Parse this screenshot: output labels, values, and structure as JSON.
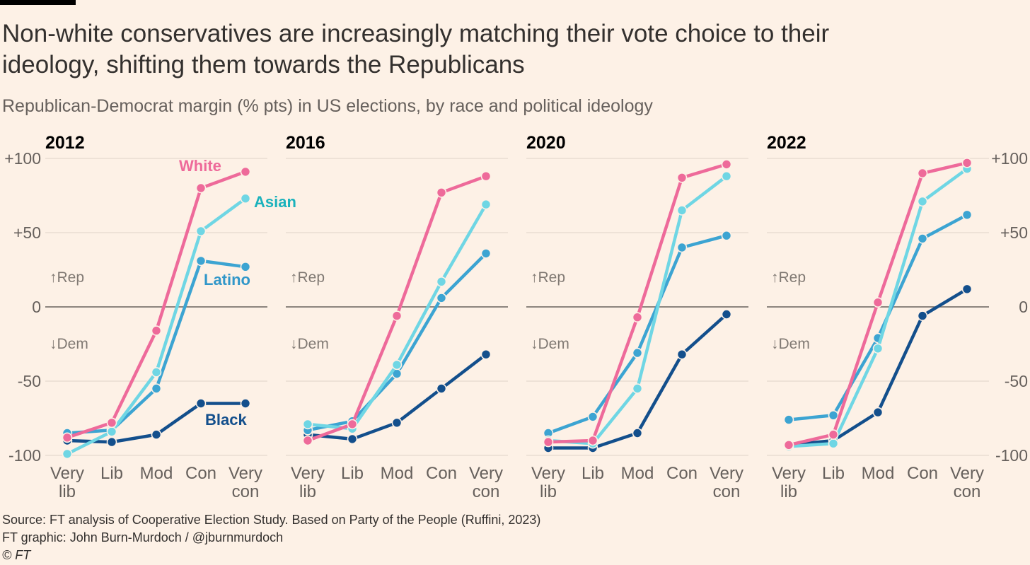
{
  "title": "Non-white conservatives are increasingly matching their vote choice to their ideology, shifting them towards the Republicans",
  "subtitle": "Republican-Democrat margin (% pts) in US elections, by race and political ideology",
  "footer": {
    "source": "Source: FT analysis of Cooperative Election Study. Based on Party of the People (Ruffini, 2023)",
    "credit": "FT graphic: John Burn-Murdoch / @jburnmurdoch",
    "copyright": "© FT"
  },
  "chart_data": {
    "type": "line",
    "categories": [
      "Very lib",
      "Lib",
      "Mod",
      "Con",
      "Very con"
    ],
    "category_lines": [
      [
        "Very",
        "lib"
      ],
      [
        "Lib"
      ],
      [
        "Mod"
      ],
      [
        "Con"
      ],
      [
        "Very",
        "con"
      ]
    ],
    "yticks": [
      100,
      50,
      0,
      -50,
      -100
    ],
    "ytick_labels": [
      "+100",
      "+50",
      "0",
      "-50",
      "-100"
    ],
    "ylim": [
      -100,
      100
    ],
    "grid": true,
    "direction_labels": {
      "up": "Rep",
      "down": "Dem"
    },
    "series_order": [
      "Black",
      "Latino",
      "Asian",
      "White"
    ],
    "colors": {
      "White": "#ee6a9a",
      "Asian": "#6fd6e4",
      "Latino": "#3ca4d2",
      "Black": "#134f8c"
    },
    "label_colors": {
      "White": "#ee6a9a",
      "Asian": "#1bb2bc",
      "Latino": "#3197c9",
      "Black": "#134f8c"
    },
    "panels": [
      {
        "title": "2012",
        "series": [
          {
            "name": "White",
            "values": [
              -88,
              -78,
              -16,
              80,
              91
            ]
          },
          {
            "name": "Asian",
            "values": [
              -99,
              -84,
              -44,
              51,
              73
            ]
          },
          {
            "name": "Latino",
            "values": [
              -85,
              -83,
              -55,
              31,
              27
            ]
          },
          {
            "name": "Black",
            "values": [
              -90,
              -91,
              -86,
              -65,
              -65
            ]
          }
        ]
      },
      {
        "title": "2016",
        "series": [
          {
            "name": "White",
            "values": [
              -90,
              -79,
              -6,
              77,
              88
            ]
          },
          {
            "name": "Asian",
            "values": [
              -79,
              -82,
              -39,
              17,
              69
            ]
          },
          {
            "name": "Latino",
            "values": [
              -83,
              -77,
              -45,
              6,
              36
            ]
          },
          {
            "name": "Black",
            "values": [
              -86,
              -89,
              -78,
              -55,
              -32
            ]
          }
        ]
      },
      {
        "title": "2020",
        "series": [
          {
            "name": "White",
            "values": [
              -91,
              -90,
              -7,
              87,
              96
            ]
          },
          {
            "name": "Asian",
            "values": [
              -90,
              -92,
              -55,
              65,
              88
            ]
          },
          {
            "name": "Latino",
            "values": [
              -85,
              -74,
              -31,
              40,
              48
            ]
          },
          {
            "name": "Black",
            "values": [
              -95,
              -95,
              -85,
              -32,
              -5
            ]
          }
        ]
      },
      {
        "title": "2022",
        "series": [
          {
            "name": "White",
            "values": [
              -93,
              -86,
              3,
              90,
              97
            ]
          },
          {
            "name": "Asian",
            "values": [
              -94,
              -92,
              -28,
              71,
              93
            ]
          },
          {
            "name": "Latino",
            "values": [
              -76,
              -73,
              -21,
              46,
              62
            ]
          },
          {
            "name": "Black",
            "values": [
              -93,
              -90,
              -71,
              -6,
              12
            ]
          }
        ]
      }
    ],
    "series_labels": [
      {
        "panel": 0,
        "text": "White"
      },
      {
        "panel": 0,
        "text": "Asian"
      },
      {
        "panel": 0,
        "text": "Latino"
      },
      {
        "panel": 0,
        "text": "Black"
      }
    ]
  }
}
